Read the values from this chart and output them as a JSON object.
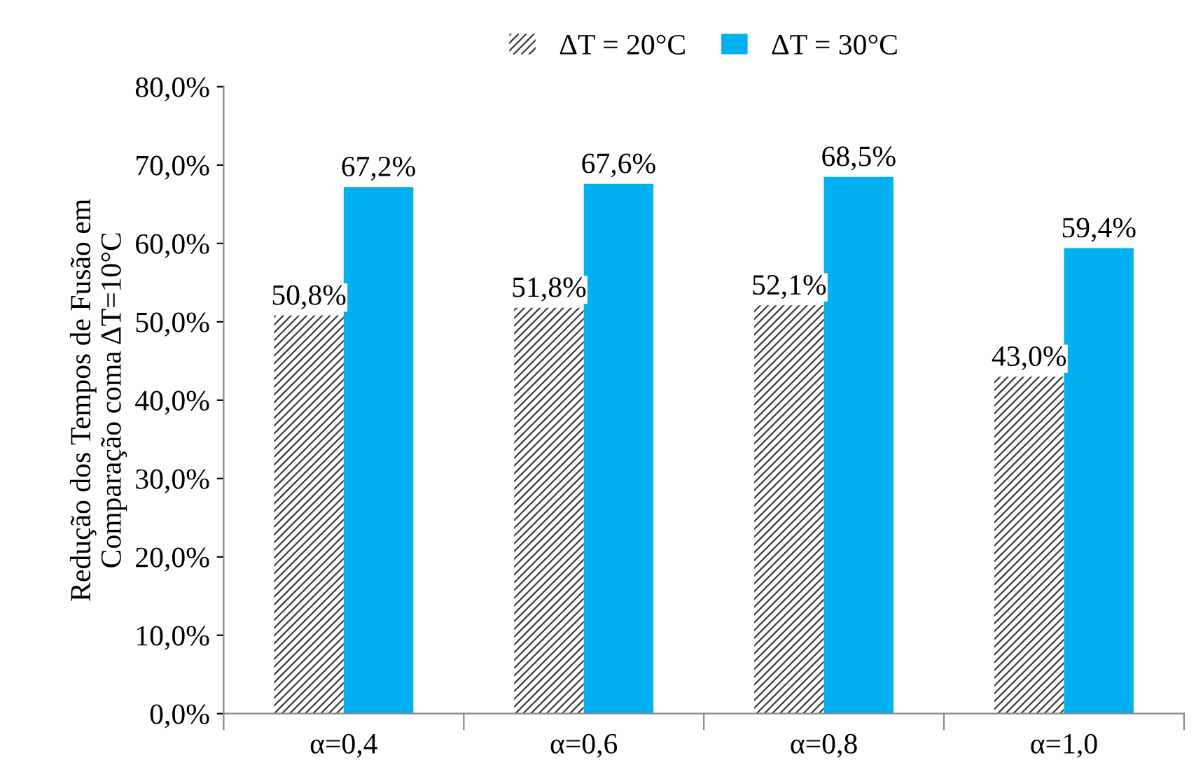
{
  "chart_data": {
    "type": "bar",
    "ylabel": "Redução dos Tempos de Fusão em\nComparação coma ΔT=10°C",
    "categories": [
      "α=0,4",
      "α=0,6",
      "α=0,8",
      "α=1,0"
    ],
    "series": [
      {
        "name": "ΔT = 20°C",
        "color": "#3a3a3a",
        "values": [
          50.8,
          51.8,
          52.1,
          43.0
        ],
        "value_labels": [
          "50,8%",
          "51,8%",
          "52,1%",
          "43,0%"
        ]
      },
      {
        "name": "ΔT = 30°C",
        "color": "#00b0f0",
        "values": [
          67.2,
          67.6,
          68.5,
          59.4
        ],
        "value_labels": [
          "67,2%",
          "67,6%",
          "68,5%",
          "59,4%"
        ]
      }
    ],
    "ylim": [
      0,
      80
    ],
    "yticks": [
      {
        "value": 0,
        "label": "0,0%"
      },
      {
        "value": 10,
        "label": "10,0%"
      },
      {
        "value": 20,
        "label": "20,0%"
      },
      {
        "value": 30,
        "label": "30,0%"
      },
      {
        "value": 40,
        "label": "40,0%"
      },
      {
        "value": 50,
        "label": "50,0%"
      },
      {
        "value": 60,
        "label": "60,0%"
      },
      {
        "value": 70,
        "label": "70,0%"
      },
      {
        "value": 80,
        "label": "80,0%"
      }
    ],
    "grid": false,
    "legend": "top"
  }
}
